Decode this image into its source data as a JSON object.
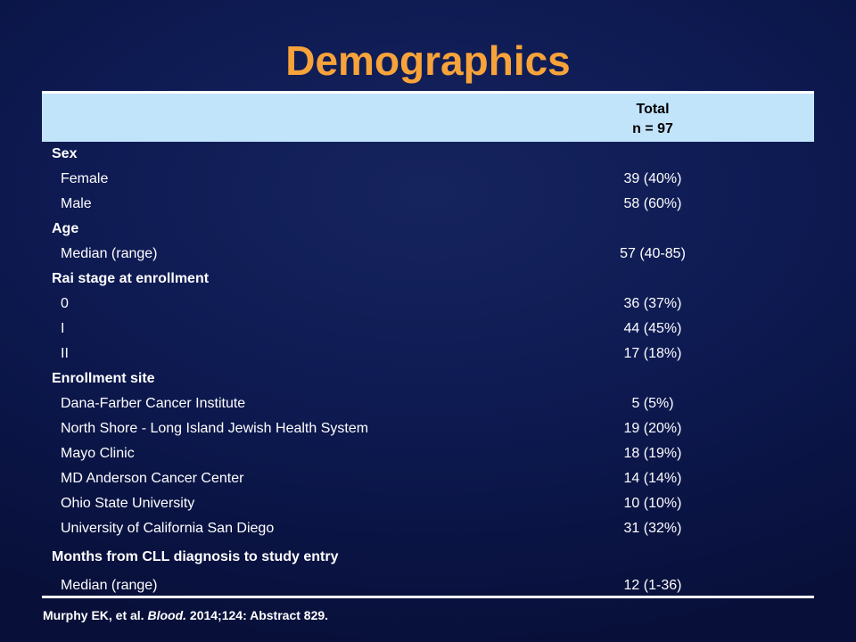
{
  "title": "Demographics",
  "header": {
    "total_line1": "Total",
    "total_line2": "n = 97"
  },
  "rows": [
    {
      "type": "section",
      "label": "Sex",
      "value": ""
    },
    {
      "type": "item",
      "label": "Female",
      "value": "39 (40%)"
    },
    {
      "type": "item",
      "label": "Male",
      "value": "58 (60%)"
    },
    {
      "type": "section",
      "label": "Age",
      "value": ""
    },
    {
      "type": "item",
      "label": "Median (range)",
      "value": "57 (40-85)"
    },
    {
      "type": "section",
      "label": "Rai stage at enrollment",
      "value": ""
    },
    {
      "type": "item",
      "label": "0",
      "value": "36 (37%)"
    },
    {
      "type": "item",
      "label": "I",
      "value": "44 (45%)"
    },
    {
      "type": "item",
      "label": "II",
      "value": "17 (18%)"
    },
    {
      "type": "section",
      "label": "Enrollment site",
      "value": ""
    },
    {
      "type": "item",
      "label": "Dana-Farber Cancer Institute",
      "value": "5 (5%)"
    },
    {
      "type": "item",
      "label": "North Shore - Long Island Jewish Health System",
      "value": "19 (20%)"
    },
    {
      "type": "item",
      "label": "Mayo Clinic",
      "value": "18 (19%)"
    },
    {
      "type": "item",
      "label": "MD Anderson Cancer Center",
      "value": "14 (14%)"
    },
    {
      "type": "item",
      "label": "Ohio State University",
      "value": "10 (10%)"
    },
    {
      "type": "item",
      "label": "University of California San Diego",
      "value": "31 (32%)"
    },
    {
      "type": "section",
      "label": "Months from CLL diagnosis to study entry",
      "value": ""
    },
    {
      "type": "item",
      "label": "Median (range)",
      "value": "12 (1-36)"
    }
  ],
  "citation": {
    "authors": "Murphy EK, et al. ",
    "journal": "Blood.",
    "details": " 2014;124: Abstract 829."
  },
  "colors": {
    "title": "#f7a33a",
    "header_bg": "#c2e4fb",
    "background": "#0e1a52"
  }
}
